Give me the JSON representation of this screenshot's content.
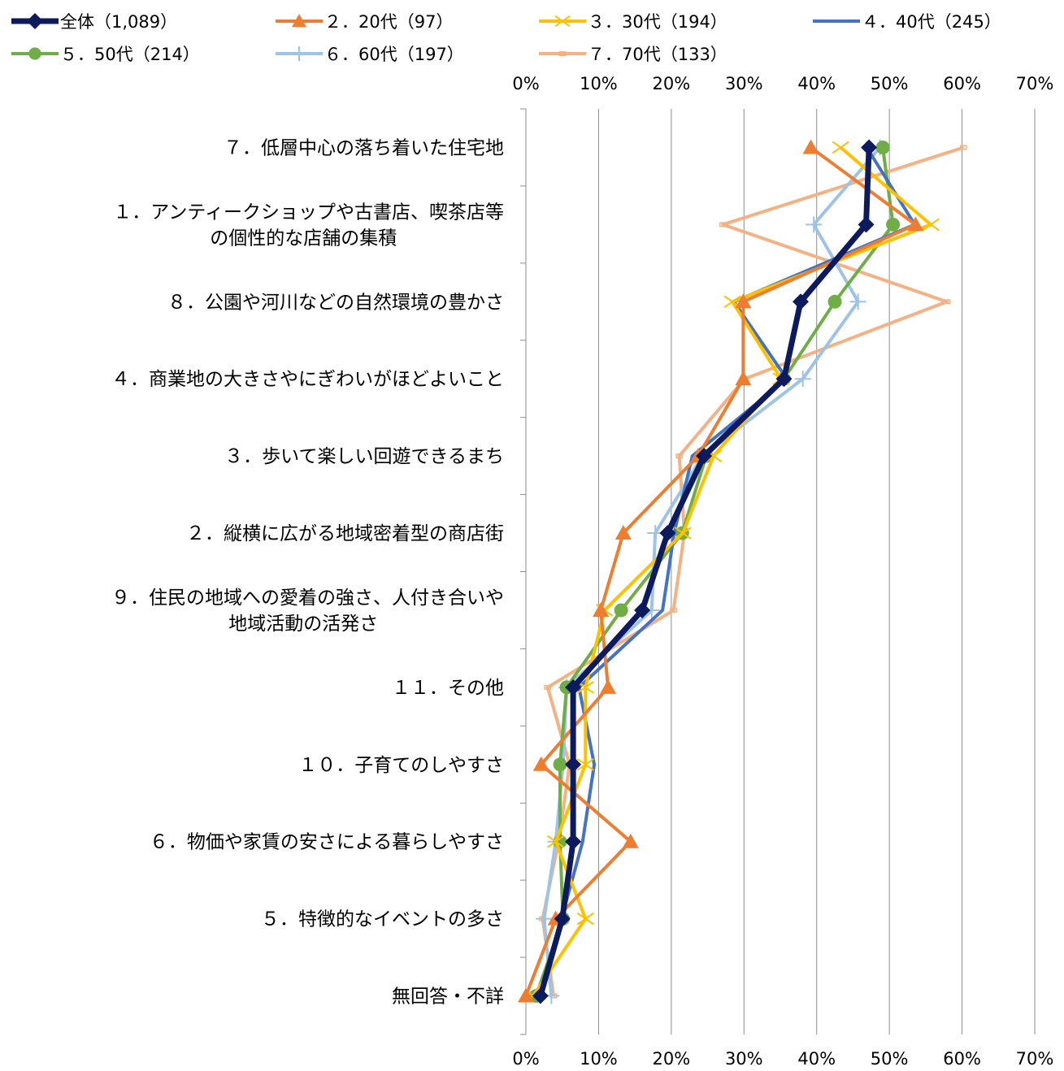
{
  "chart_data": {
    "type": "line",
    "orientation": "horizontal",
    "title": "",
    "xlabel": "",
    "ylabel": "",
    "xlim": [
      0,
      0.7
    ],
    "x_ticks": [
      "0%",
      "10%",
      "20%",
      "30%",
      "40%",
      "50%",
      "60%",
      "70%"
    ],
    "x_axis_labels_position": "top-and-bottom",
    "grid": "vertical",
    "legend_position": "top",
    "categories": [
      [
        "７．低層中心の落ち着いた住宅地"
      ],
      [
        "１．アンティークショップや古書店、喫茶店等",
        "の個性的な店舗の集積"
      ],
      [
        "８．公園や河川などの自然環境の豊かさ"
      ],
      [
        "４．商業地の大きさやにぎわいがほどよいこと"
      ],
      [
        "３．歩いて楽しい回遊できるまち"
      ],
      [
        "２．縦横に広がる地域密着型の商店街"
      ],
      [
        "９．住民の地域への愛着の強さ、人付き合いや",
        "地域活動の活発さ"
      ],
      [
        "１１．その他"
      ],
      [
        "１０．子育てのしやすさ"
      ],
      [
        "６．物価や家賃の安さによる暮らしやすさ"
      ],
      [
        "５．特徴的なイベントの多さ"
      ],
      [
        "無回答・不詳"
      ]
    ],
    "series": [
      {
        "name": "全体（1,089）",
        "color": "#0d1a5e",
        "marker": "diamond",
        "width": 7,
        "values": [
          0.472,
          0.468,
          0.378,
          0.355,
          0.245,
          0.195,
          0.16,
          0.065,
          0.065,
          0.065,
          0.05,
          0.02
        ]
      },
      {
        "name": "２．20代（97）",
        "color": "#ed7d31",
        "marker": "triangle",
        "width": 4,
        "values": [
          0.392,
          0.536,
          0.299,
          0.299,
          0.237,
          0.134,
          0.103,
          0.113,
          0.021,
          0.144,
          0.041,
          0.0
        ]
      },
      {
        "name": "３．30代（194）",
        "color": "#ffc000",
        "marker": "x",
        "width": 4,
        "values": [
          0.433,
          0.557,
          0.284,
          0.351,
          0.258,
          0.216,
          0.108,
          0.082,
          0.082,
          0.041,
          0.082,
          0.01
        ]
      },
      {
        "name": "４．40代（245）",
        "color": "#4472c4",
        "marker": "none",
        "width": 4,
        "values": [
          0.469,
          0.535,
          0.286,
          0.359,
          0.229,
          0.204,
          0.188,
          0.073,
          0.094,
          0.078,
          0.049,
          0.02
        ]
      },
      {
        "name": "５．50代（214）",
        "color": "#70ad47",
        "marker": "circle",
        "width": 4,
        "values": [
          0.491,
          0.505,
          0.425,
          0.355,
          0.248,
          0.215,
          0.131,
          0.056,
          0.047,
          0.047,
          0.051,
          0.014
        ]
      },
      {
        "name": "６．60代（197）",
        "color": "#9dc3e6",
        "marker": "plus",
        "width": 4,
        "values": [
          0.487,
          0.396,
          0.457,
          0.381,
          0.243,
          0.178,
          0.173,
          0.056,
          0.051,
          0.041,
          0.025,
          0.035
        ]
      },
      {
        "name": "７．70代（133）",
        "color": "#f4b183",
        "marker": "square",
        "width": 4,
        "values": [
          0.602,
          0.271,
          0.579,
          0.301,
          0.211,
          0.218,
          0.203,
          0.03,
          0.06,
          0.045,
          0.023,
          0.038
        ]
      }
    ]
  }
}
